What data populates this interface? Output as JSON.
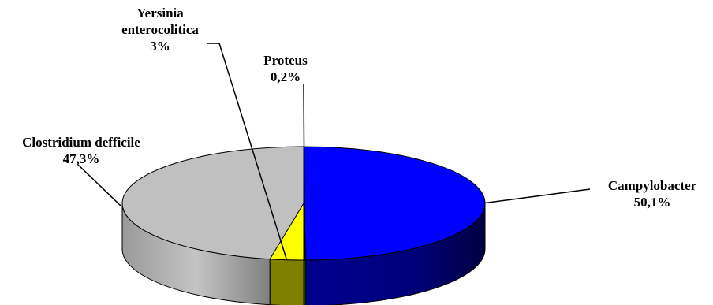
{
  "chart_data": {
    "type": "pie",
    "style": "3d",
    "slices": [
      {
        "name": "Campylobacter",
        "value": 50.1,
        "value_label": "50,1%",
        "color": "#0000ff",
        "side_color": "#000080"
      },
      {
        "name": "Proteus",
        "value": 0.2,
        "value_label": "0,2%",
        "color": "#008000",
        "side_color": "#004000"
      },
      {
        "name": "Yersinia enterocolitica",
        "name_lines": [
          "Yersinia",
          "enterocolitica"
        ],
        "value": 3,
        "value_label": "3%",
        "color": "#ffff00",
        "side_color": "#808000"
      },
      {
        "name": "Clostridium defficile",
        "value": 47.3,
        "value_label": "47,3%",
        "color": "#c0c0c0",
        "side_color": "#808080"
      }
    ]
  }
}
